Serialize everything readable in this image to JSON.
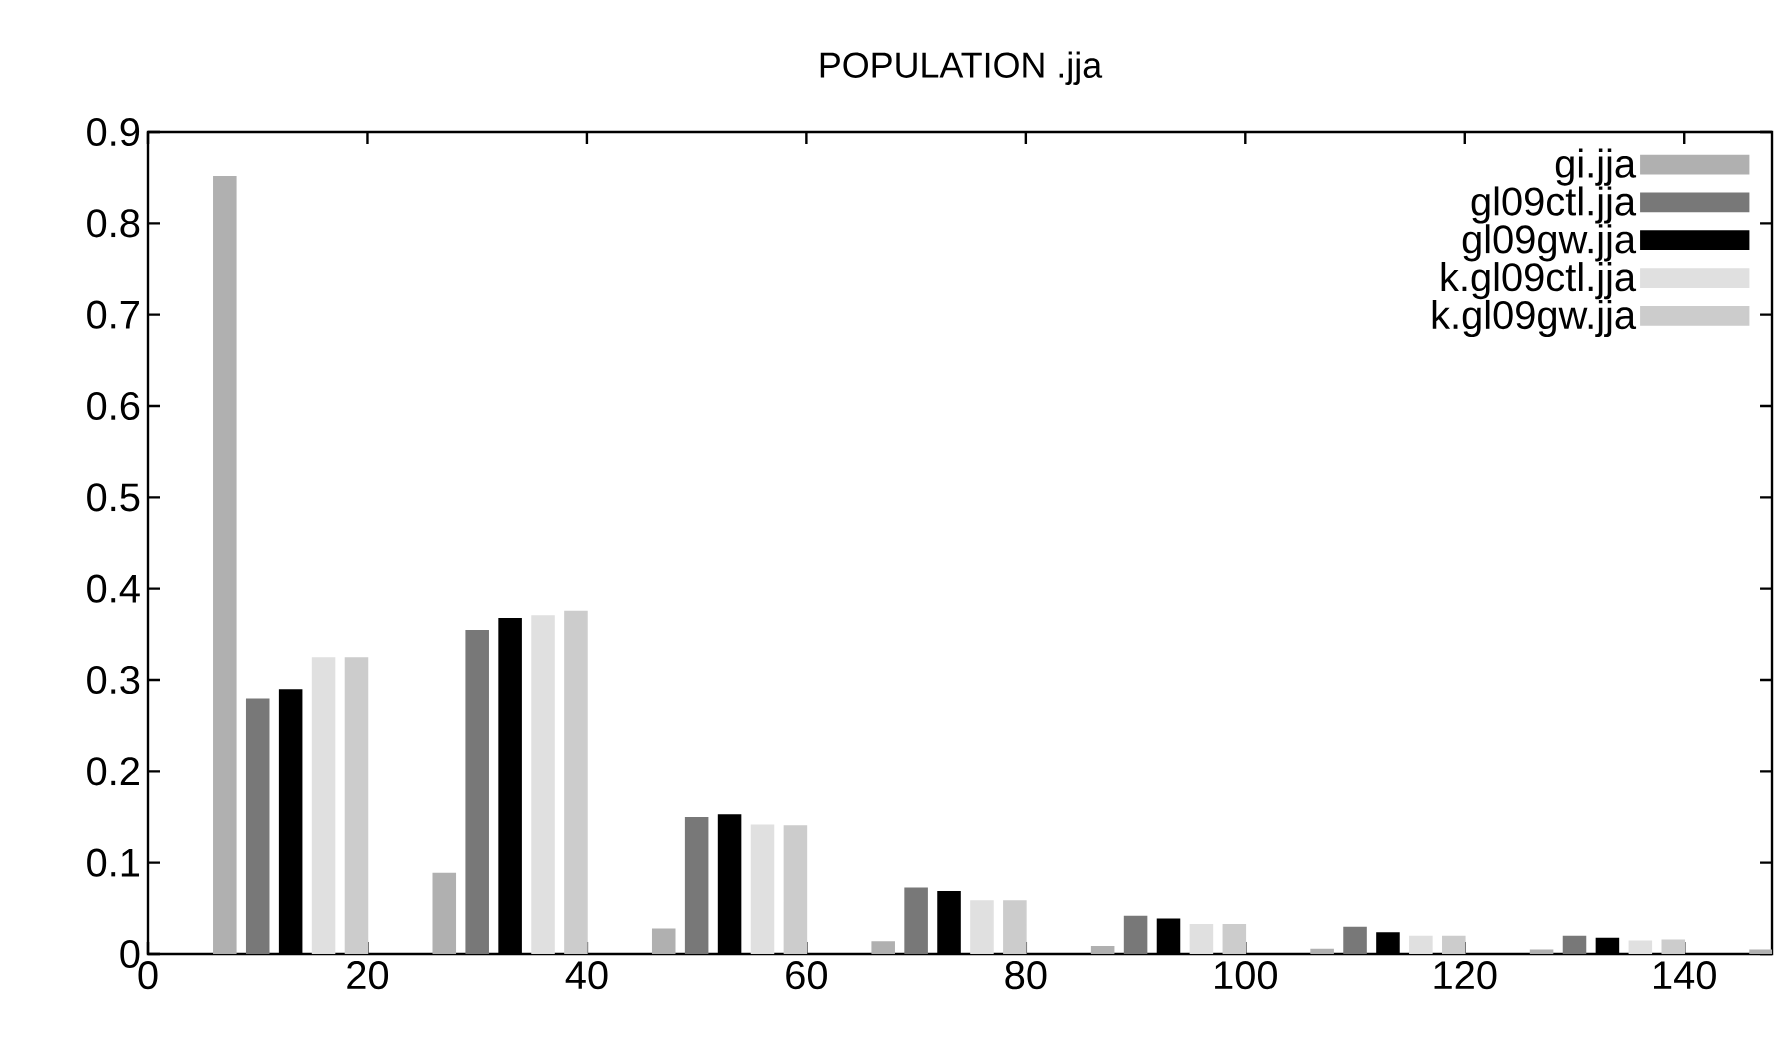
{
  "chart_data": {
    "type": "bar",
    "title": "POPULATION .jja",
    "series": [
      {
        "name": "gi.jja",
        "color": "#b0b0b0",
        "x": [
          7,
          27,
          47,
          67,
          87,
          107,
          127,
          147
        ],
        "values": [
          0.851,
          0.088,
          0.027,
          0.013,
          0.008,
          0.005,
          0.004,
          0.004
        ]
      },
      {
        "name": "gl09ctl.jja",
        "color": "#787878",
        "x": [
          10,
          30,
          50,
          70,
          90,
          110,
          130
        ],
        "values": [
          0.279,
          0.354,
          0.149,
          0.072,
          0.041,
          0.029,
          0.019
        ]
      },
      {
        "name": "gl09gw.jja",
        "color": "#000000",
        "x": [
          13,
          33,
          53,
          73,
          93,
          113,
          133
        ],
        "values": [
          0.289,
          0.367,
          0.152,
          0.068,
          0.038,
          0.023,
          0.017
        ]
      },
      {
        "name": "k.gl09ctl.jja",
        "color": "#e0e0e0",
        "x": [
          16,
          36,
          56,
          76,
          96,
          116,
          136
        ],
        "values": [
          0.324,
          0.37,
          0.141,
          0.058,
          0.032,
          0.019,
          0.014
        ]
      },
      {
        "name": "k.gl09gw.jja",
        "color": "#cccccc",
        "x": [
          19,
          39,
          59,
          79,
          99,
          119,
          139
        ],
        "values": [
          0.324,
          0.375,
          0.14,
          0.058,
          0.032,
          0.019,
          0.015
        ]
      }
    ],
    "xlim": [
      0,
      148
    ],
    "ylim": [
      0,
      0.9
    ],
    "xticks": [
      0,
      20,
      40,
      60,
      80,
      100,
      120,
      140
    ],
    "yticks": [
      0,
      0.1,
      0.2,
      0.3,
      0.4,
      0.5,
      0.6,
      0.7,
      0.8,
      0.9
    ],
    "legend": "top right",
    "grid": false
  }
}
